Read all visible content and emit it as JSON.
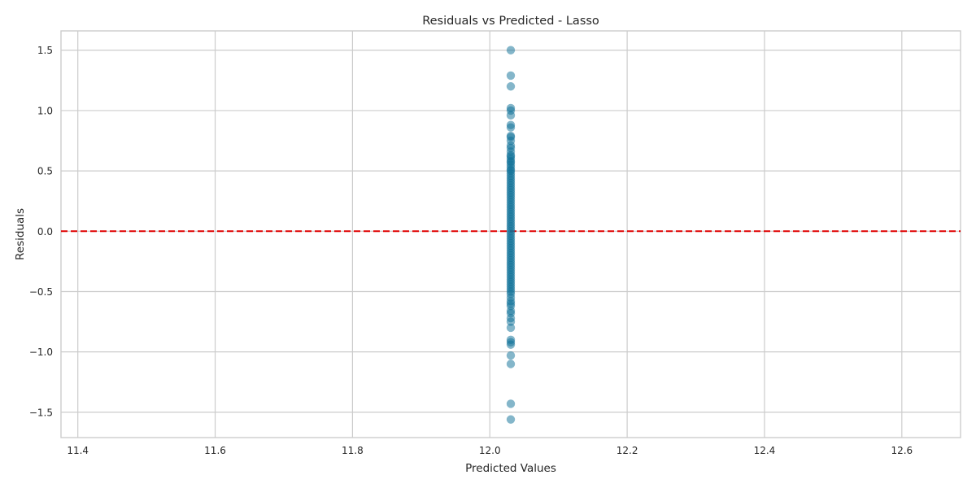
{
  "chart_data": {
    "type": "scatter",
    "title": "Residuals vs Predicted - Lasso",
    "xlabel": "Predicted Values",
    "ylabel": "Residuals",
    "xlim": [
      11.3755,
      12.6855
    ],
    "ylim": [
      -1.71,
      1.66
    ],
    "xticks": [
      11.4,
      11.6,
      11.8,
      12.0,
      12.2,
      12.4,
      12.6
    ],
    "yticks": [
      -1.5,
      -1.0,
      -0.5,
      0.0,
      0.5,
      1.0,
      1.5
    ],
    "xtick_labels": [
      "11.4",
      "11.6",
      "11.8",
      "12.0",
      "12.2",
      "12.4",
      "12.6"
    ],
    "ytick_labels": [
      "−1.5",
      "−1.0",
      "−0.5",
      "0.0",
      "0.5",
      "1.0",
      "1.5"
    ],
    "grid": true,
    "reference_line": {
      "y": 0.0,
      "style": "dashed",
      "color": "#e00000"
    },
    "point_color": "#0a6e96",
    "series": [
      {
        "x": 12.0305,
        "y": [
          1.5,
          1.29,
          1.2,
          1.02,
          1.0,
          0.96,
          0.88,
          0.86,
          0.79,
          0.78,
          0.75,
          0.71,
          0.69,
          0.66,
          0.63,
          0.62,
          0.6,
          0.58,
          0.57,
          0.55,
          0.53,
          0.51,
          0.5,
          0.48,
          0.46,
          0.44,
          0.42,
          0.4,
          0.38,
          0.36,
          0.34,
          0.32,
          0.3,
          0.28,
          0.26,
          0.24,
          0.22,
          0.2,
          0.18,
          0.16,
          0.14,
          0.12,
          0.1,
          0.08,
          0.06,
          0.04,
          0.02,
          0.0,
          -0.02,
          -0.04,
          -0.06,
          -0.08,
          -0.1,
          -0.12,
          -0.14,
          -0.16,
          -0.18,
          -0.2,
          -0.22,
          -0.24,
          -0.26,
          -0.28,
          -0.3,
          -0.32,
          -0.34,
          -0.36,
          -0.38,
          -0.4,
          -0.42,
          -0.44,
          -0.46,
          -0.48,
          -0.5,
          -0.52,
          -0.55,
          -0.58,
          -0.6,
          -0.62,
          -0.66,
          -0.68,
          -0.72,
          -0.75,
          -0.8,
          -0.9,
          -0.92,
          -0.94,
          -1.03,
          -1.1,
          -1.43,
          -1.56
        ]
      }
    ]
  }
}
